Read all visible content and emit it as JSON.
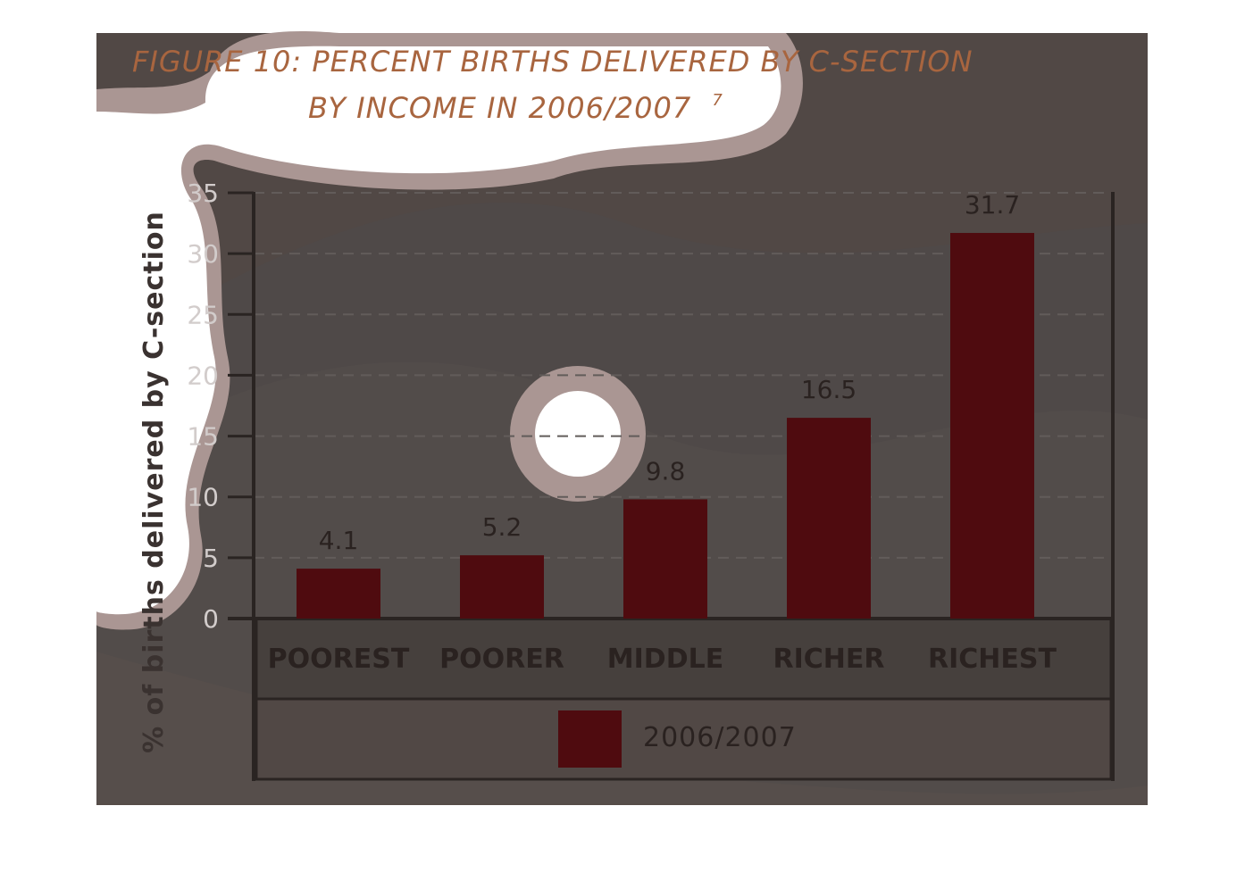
{
  "figure": {
    "title_line1": "FIGURE 10: PERCENT BIRTHS DELIVERED BY C-SECTION",
    "title_line2": "BY INCOME IN 2006/2007",
    "footnote": "7"
  },
  "colors": {
    "background": "#514845",
    "bar": "#4f0b0f",
    "blob": "#aa9693",
    "title": "#a8653f"
  },
  "chart_data": {
    "type": "bar",
    "title": "FIGURE 10: PERCENT BIRTHS DELIVERED BY C-SECTION BY INCOME IN 2006/2007",
    "categories": [
      "POOREST",
      "POORER",
      "MIDDLE",
      "RICHER",
      "RICHEST"
    ],
    "series": [
      {
        "name": "2006/2007",
        "values": [
          4.1,
          5.2,
          9.8,
          16.5,
          31.7
        ],
        "color": "#4f0b0f"
      }
    ],
    "data_labels": [
      "4.1",
      "5.2",
      "9.8",
      "16.5",
      "31.7"
    ],
    "xlabel": "",
    "ylabel": "% of births delivered by C-section",
    "ylim": [
      0,
      35
    ],
    "yticks": [
      0,
      5,
      10,
      15,
      20,
      25,
      30,
      35
    ],
    "ytick_labels": [
      "0",
      "5",
      "10",
      "15",
      "20",
      "25",
      "30",
      "35"
    ],
    "grid": "horizontal dashed",
    "legend_position": "bottom"
  }
}
